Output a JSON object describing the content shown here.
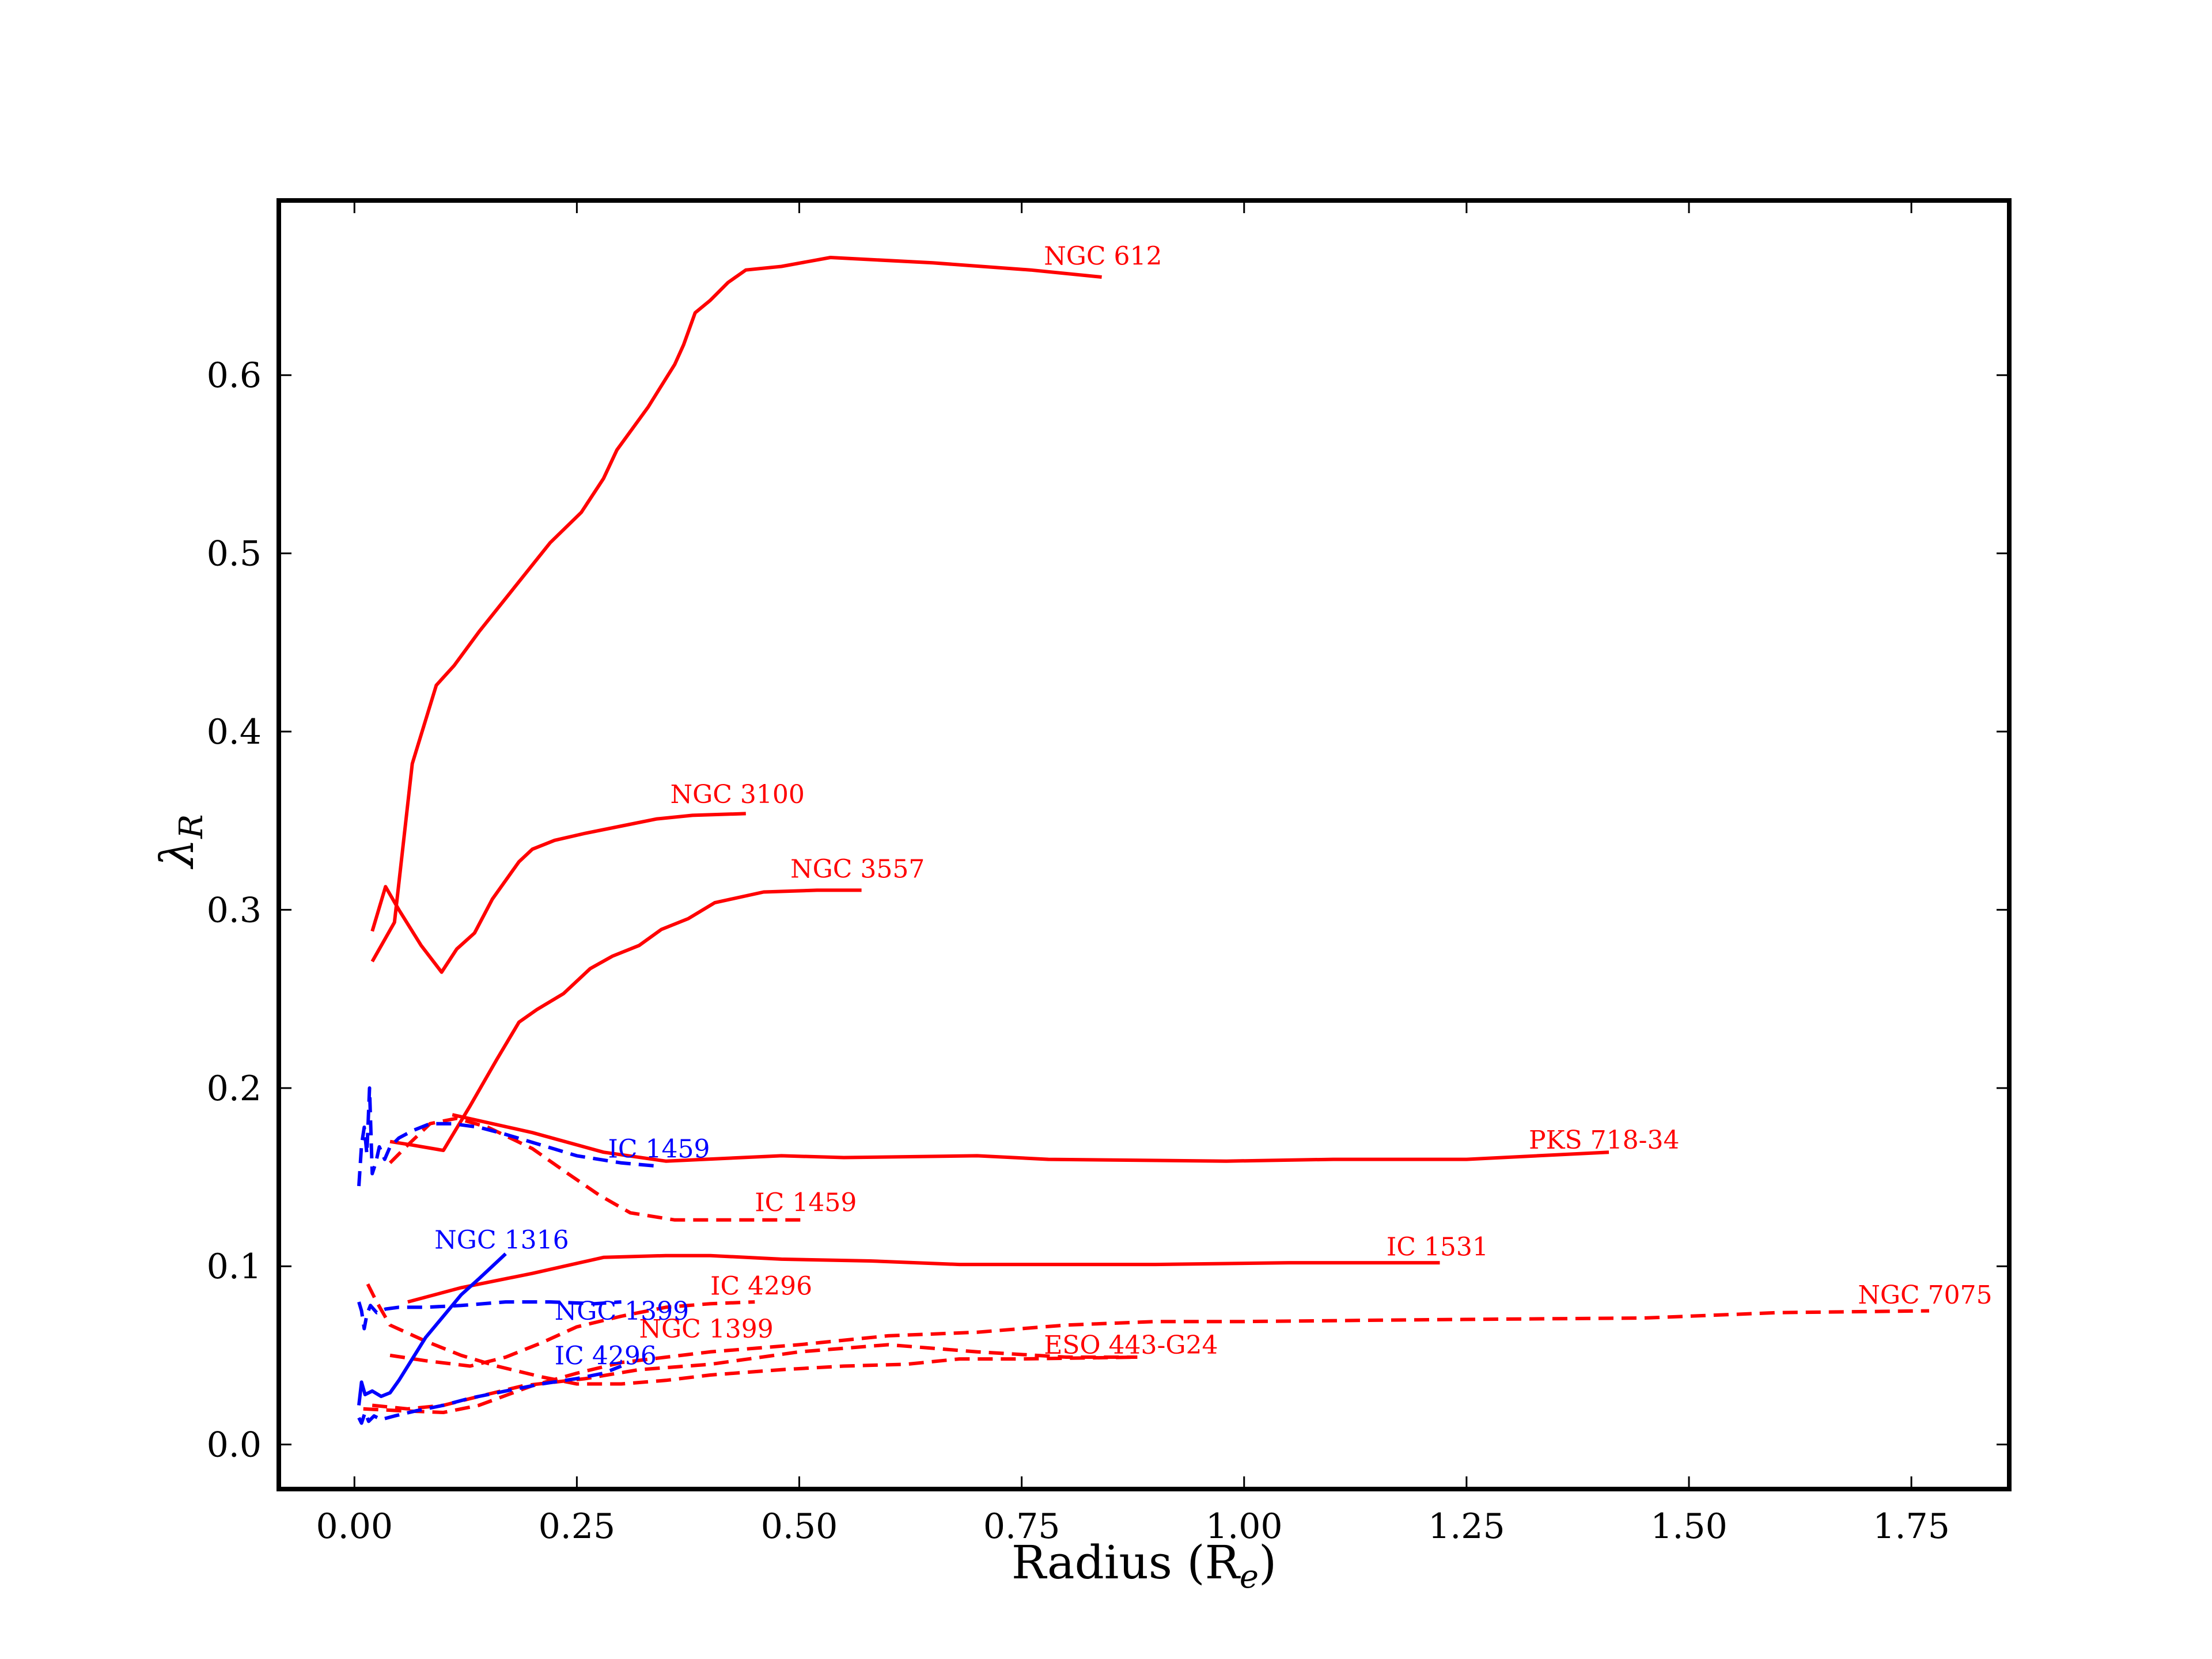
{
  "chart_data": {
    "type": "line",
    "title": "",
    "xlabel": "Radius (R",
    "xlabel_sub": "e",
    "xlabel_close": ")",
    "ylabel": "λ",
    "ylabel_sub": "R",
    "xlim": [
      -0.085,
      1.86
    ],
    "ylim": [
      -0.025,
      0.698
    ],
    "xticks": [
      0.0,
      0.25,
      0.5,
      0.75,
      1.0,
      1.25,
      1.5,
      1.75
    ],
    "xtick_labels": [
      "0.00",
      "0.25",
      "0.50",
      "0.75",
      "1.00",
      "1.25",
      "1.50",
      "1.75"
    ],
    "yticks": [
      0.0,
      0.1,
      0.2,
      0.3,
      0.4,
      0.5,
      0.6
    ],
    "ytick_labels": [
      "0.0",
      "0.1",
      "0.2",
      "0.3",
      "0.4",
      "0.5",
      "0.6"
    ],
    "grid": false,
    "legend": "none",
    "colors": {
      "red": "#ff0000",
      "blue": "#0000ff"
    },
    "series": [
      {
        "name": "NGC 612",
        "color": "red",
        "dash": false,
        "label_at": [
          0.775,
          0.662
        ],
        "points": [
          [
            0.02,
            0.271
          ],
          [
            0.045,
            0.293
          ],
          [
            0.065,
            0.382
          ],
          [
            0.092,
            0.426
          ],
          [
            0.112,
            0.437
          ],
          [
            0.14,
            0.456
          ],
          [
            0.18,
            0.481
          ],
          [
            0.22,
            0.506
          ],
          [
            0.255,
            0.523
          ],
          [
            0.28,
            0.542
          ],
          [
            0.295,
            0.558
          ],
          [
            0.33,
            0.582
          ],
          [
            0.345,
            0.594
          ],
          [
            0.36,
            0.606
          ],
          [
            0.37,
            0.617
          ],
          [
            0.383,
            0.635
          ],
          [
            0.4,
            0.642
          ],
          [
            0.42,
            0.652
          ],
          [
            0.44,
            0.659
          ],
          [
            0.48,
            0.661
          ],
          [
            0.535,
            0.666
          ],
          [
            0.65,
            0.663
          ],
          [
            0.76,
            0.659
          ],
          [
            0.84,
            0.655
          ]
        ]
      },
      {
        "name": "NGC 3100",
        "color": "red",
        "dash": false,
        "label_at": [
          0.355,
          0.36
        ],
        "points": [
          [
            0.02,
            0.288
          ],
          [
            0.035,
            0.313
          ],
          [
            0.05,
            0.3
          ],
          [
            0.075,
            0.28
          ],
          [
            0.098,
            0.265
          ],
          [
            0.115,
            0.278
          ],
          [
            0.135,
            0.287
          ],
          [
            0.155,
            0.306
          ],
          [
            0.185,
            0.327
          ],
          [
            0.2,
            0.334
          ],
          [
            0.225,
            0.339
          ],
          [
            0.26,
            0.343
          ],
          [
            0.3,
            0.347
          ],
          [
            0.34,
            0.351
          ],
          [
            0.38,
            0.353
          ],
          [
            0.44,
            0.354
          ]
        ]
      },
      {
        "name": "NGC 3557",
        "color": "red",
        "dash": false,
        "label_at": [
          0.49,
          0.318
        ],
        "points": [
          [
            0.04,
            0.17
          ],
          [
            0.065,
            0.168
          ],
          [
            0.1,
            0.165
          ],
          [
            0.13,
            0.19
          ],
          [
            0.16,
            0.216
          ],
          [
            0.185,
            0.237
          ],
          [
            0.205,
            0.244
          ],
          [
            0.235,
            0.253
          ],
          [
            0.265,
            0.267
          ],
          [
            0.29,
            0.274
          ],
          [
            0.32,
            0.28
          ],
          [
            0.345,
            0.289
          ],
          [
            0.375,
            0.295
          ],
          [
            0.405,
            0.304
          ],
          [
            0.46,
            0.31
          ],
          [
            0.52,
            0.311
          ],
          [
            0.57,
            0.311
          ]
        ]
      },
      {
        "name": "PKS 718-34",
        "color": "red",
        "dash": false,
        "label_at": [
          1.32,
          0.166
        ],
        "points": [
          [
            0.11,
            0.185
          ],
          [
            0.2,
            0.175
          ],
          [
            0.28,
            0.164
          ],
          [
            0.35,
            0.159
          ],
          [
            0.48,
            0.162
          ],
          [
            0.55,
            0.161
          ],
          [
            0.7,
            0.162
          ],
          [
            0.78,
            0.16
          ],
          [
            0.98,
            0.159
          ],
          [
            1.1,
            0.16
          ],
          [
            1.25,
            0.16
          ],
          [
            1.41,
            0.164
          ]
        ]
      },
      {
        "name": "IC 1459",
        "color": "red",
        "dash": true,
        "label_at": [
          0.45,
          0.131
        ],
        "points": [
          [
            0.04,
            0.158
          ],
          [
            0.06,
            0.168
          ],
          [
            0.085,
            0.18
          ],
          [
            0.115,
            0.183
          ],
          [
            0.15,
            0.178
          ],
          [
            0.2,
            0.166
          ],
          [
            0.24,
            0.152
          ],
          [
            0.275,
            0.14
          ],
          [
            0.31,
            0.13
          ],
          [
            0.36,
            0.126
          ],
          [
            0.42,
            0.126
          ],
          [
            0.51,
            0.126
          ]
        ]
      },
      {
        "name": "IC 1531",
        "color": "red",
        "dash": false,
        "label_at": [
          1.16,
          0.106
        ],
        "points": [
          [
            0.06,
            0.08
          ],
          [
            0.12,
            0.088
          ],
          [
            0.2,
            0.096
          ],
          [
            0.28,
            0.105
          ],
          [
            0.35,
            0.106
          ],
          [
            0.4,
            0.106
          ],
          [
            0.48,
            0.104
          ],
          [
            0.58,
            0.103
          ],
          [
            0.68,
            0.101
          ],
          [
            0.8,
            0.101
          ],
          [
            0.9,
            0.101
          ],
          [
            1.05,
            0.102
          ],
          [
            1.22,
            0.102
          ]
        ]
      },
      {
        "name": "IC 4296",
        "color": "red",
        "dash": true,
        "label_at": [
          0.4,
          0.084
        ],
        "points": [
          [
            0.015,
            0.09
          ],
          [
            0.025,
            0.08
          ],
          [
            0.04,
            0.067
          ],
          [
            0.08,
            0.058
          ],
          [
            0.12,
            0.05
          ],
          [
            0.16,
            0.044
          ],
          [
            0.21,
            0.038
          ],
          [
            0.25,
            0.034
          ],
          [
            0.3,
            0.034
          ],
          [
            0.35,
            0.036
          ],
          [
            0.4,
            0.039
          ],
          [
            0.48,
            0.042
          ],
          [
            0.55,
            0.044
          ],
          [
            0.62,
            0.045
          ],
          [
            0.68,
            0.048
          ],
          [
            0.75,
            0.048
          ],
          [
            0.88,
            0.049
          ]
        ]
      },
      {
        "name": "NGC 1399",
        "color": "red",
        "dash": true,
        "label_at": [
          0.32,
          0.06
        ],
        "points": [
          [
            0.04,
            0.05
          ],
          [
            0.08,
            0.047
          ],
          [
            0.13,
            0.044
          ],
          [
            0.17,
            0.049
          ],
          [
            0.21,
            0.057
          ],
          [
            0.25,
            0.066
          ],
          [
            0.3,
            0.072
          ],
          [
            0.35,
            0.077
          ],
          [
            0.4,
            0.079
          ],
          [
            0.45,
            0.08
          ]
        ]
      },
      {
        "name": "NGC 7075",
        "color": "red",
        "dash": true,
        "label_at": [
          1.69,
          0.079
        ],
        "points": [
          [
            0.01,
            0.02
          ],
          [
            0.05,
            0.019
          ],
          [
            0.1,
            0.018
          ],
          [
            0.14,
            0.022
          ],
          [
            0.2,
            0.033
          ],
          [
            0.25,
            0.04
          ],
          [
            0.3,
            0.046
          ],
          [
            0.4,
            0.052
          ],
          [
            0.5,
            0.056
          ],
          [
            0.6,
            0.061
          ],
          [
            0.7,
            0.063
          ],
          [
            0.8,
            0.067
          ],
          [
            0.9,
            0.069
          ],
          [
            1.0,
            0.069
          ],
          [
            1.2,
            0.07
          ],
          [
            1.45,
            0.071
          ],
          [
            1.6,
            0.074
          ],
          [
            1.77,
            0.075
          ]
        ]
      },
      {
        "name": "ESO 443-G24",
        "color": "red",
        "dash": true,
        "label_at": [
          0.775,
          0.051
        ],
        "points": [
          [
            0.02,
            0.022
          ],
          [
            0.06,
            0.02
          ],
          [
            0.1,
            0.022
          ],
          [
            0.14,
            0.027
          ],
          [
            0.19,
            0.033
          ],
          [
            0.26,
            0.037
          ],
          [
            0.32,
            0.042
          ],
          [
            0.4,
            0.045
          ],
          [
            0.5,
            0.052
          ],
          [
            0.6,
            0.056
          ],
          [
            0.7,
            0.052
          ],
          [
            0.8,
            0.049
          ],
          [
            0.88,
            0.049
          ]
        ]
      },
      {
        "name": "IC 1459",
        "color": "blue",
        "dash": true,
        "label_at": [
          0.285,
          0.161
        ],
        "points": [
          [
            0.005,
            0.145
          ],
          [
            0.008,
            0.168
          ],
          [
            0.011,
            0.178
          ],
          [
            0.014,
            0.163
          ],
          [
            0.017,
            0.2
          ],
          [
            0.02,
            0.152
          ],
          [
            0.024,
            0.158
          ],
          [
            0.028,
            0.167
          ],
          [
            0.034,
            0.16
          ],
          [
            0.04,
            0.167
          ],
          [
            0.05,
            0.172
          ],
          [
            0.065,
            0.176
          ],
          [
            0.085,
            0.18
          ],
          [
            0.11,
            0.18
          ],
          [
            0.14,
            0.178
          ],
          [
            0.17,
            0.174
          ],
          [
            0.21,
            0.168
          ],
          [
            0.25,
            0.162
          ],
          [
            0.3,
            0.158
          ],
          [
            0.345,
            0.156
          ]
        ]
      },
      {
        "name": "NGC 1316",
        "color": "blue",
        "dash": false,
        "label_at": [
          0.09,
          0.11
        ],
        "points": [
          [
            0.005,
            0.022
          ],
          [
            0.008,
            0.035
          ],
          [
            0.012,
            0.028
          ],
          [
            0.02,
            0.03
          ],
          [
            0.03,
            0.027
          ],
          [
            0.04,
            0.029
          ],
          [
            0.05,
            0.036
          ],
          [
            0.065,
            0.048
          ],
          [
            0.08,
            0.06
          ],
          [
            0.1,
            0.072
          ],
          [
            0.12,
            0.084
          ],
          [
            0.14,
            0.093
          ],
          [
            0.155,
            0.1
          ],
          [
            0.17,
            0.107
          ]
        ]
      },
      {
        "name": "NGC 1399",
        "color": "blue",
        "dash": true,
        "label_at": [
          0.225,
          0.07
        ],
        "points": [
          [
            0.005,
            0.08
          ],
          [
            0.008,
            0.075
          ],
          [
            0.011,
            0.065
          ],
          [
            0.014,
            0.073
          ],
          [
            0.018,
            0.078
          ],
          [
            0.025,
            0.074
          ],
          [
            0.035,
            0.076
          ],
          [
            0.05,
            0.077
          ],
          [
            0.08,
            0.077
          ],
          [
            0.12,
            0.078
          ],
          [
            0.17,
            0.08
          ],
          [
            0.22,
            0.08
          ],
          [
            0.27,
            0.079
          ],
          [
            0.3,
            0.08
          ]
        ]
      },
      {
        "name": "IC 4296",
        "color": "blue",
        "dash": true,
        "label_at": [
          0.225,
          0.045
        ],
        "points": [
          [
            0.005,
            0.015
          ],
          [
            0.008,
            0.012
          ],
          [
            0.012,
            0.018
          ],
          [
            0.016,
            0.013
          ],
          [
            0.022,
            0.016
          ],
          [
            0.03,
            0.014
          ],
          [
            0.045,
            0.016
          ],
          [
            0.07,
            0.019
          ],
          [
            0.1,
            0.022
          ],
          [
            0.13,
            0.026
          ],
          [
            0.17,
            0.03
          ],
          [
            0.21,
            0.034
          ],
          [
            0.25,
            0.037
          ],
          [
            0.28,
            0.04
          ],
          [
            0.3,
            0.044
          ]
        ]
      }
    ]
  }
}
